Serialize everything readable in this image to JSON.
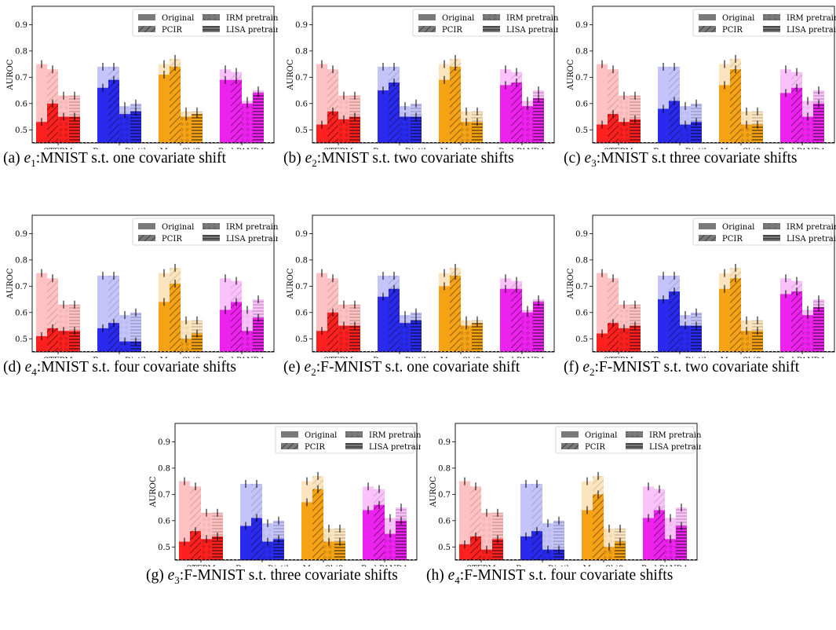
{
  "legend": {
    "items": [
      "Original",
      "PCIR",
      "IRM pretraining",
      "LISA pretraining"
    ]
  },
  "colors": {
    "STFPM": "#ff2020",
    "ReverseDistil": "#2a2aee",
    "MeanShift": "#f5a315",
    "Red PANDA": "#ee22ee"
  },
  "captions": [
    {
      "label": "(a)",
      "env_base": "e",
      "env_sub": "1",
      "rest": ":MNIST s.t. one covariate shift"
    },
    {
      "label": "(b)",
      "env_base": "e",
      "env_sub": "2",
      "rest": ":MNIST s.t. two covariate shifts"
    },
    {
      "label": "(c)",
      "env_base": "e",
      "env_sub": "3",
      "rest": ":MNIST s.t three covariate shifts"
    },
    {
      "label": "(d)",
      "env_base": "e",
      "env_sub": "4",
      "rest": ":MNIST s.t. four covariate shifts"
    },
    {
      "label": "(e)",
      "env_base": "e",
      "env_sub": "2",
      "rest": ":F-MNIST s.t. one covariate shift"
    },
    {
      "label": "(f)",
      "env_base": "e",
      "env_sub": "2",
      "rest": ":F-MNIST s.t. two covariate shift"
    },
    {
      "label": "(g)",
      "env_base": "e",
      "env_sub": "3",
      "rest": ":F-MNIST s.t. three covariate shifts"
    },
    {
      "label": "(h)",
      "env_base": "e",
      "env_sub": "4",
      "rest": ":F-MNIST s.t. four covariate shifts"
    }
  ],
  "chart_data": [
    {
      "type": "bar",
      "ylabel": "AUROC",
      "ylim": [
        0.45,
        0.97
      ],
      "yticks": [
        0.5,
        0.6,
        0.7,
        0.8,
        0.9
      ],
      "categories": [
        "STFPM",
        "ReverseDistil",
        "MeanShift",
        "Red PANDA"
      ],
      "legend_position": "top-right",
      "baseline_style": "dashed",
      "series": [
        {
          "name": "Original",
          "ref": [
            0.75,
            0.74,
            0.75,
            0.73
          ],
          "values": [
            0.53,
            0.66,
            0.71,
            0.69
          ]
        },
        {
          "name": "PCIR",
          "ref": [
            0.73,
            0.74,
            0.77,
            0.72
          ],
          "values": [
            0.6,
            0.69,
            0.74,
            0.69
          ]
        },
        {
          "name": "IRM pretraining",
          "ref": [
            0.63,
            0.59,
            0.57,
            0.61
          ],
          "values": [
            0.55,
            0.56,
            0.55,
            0.6
          ]
        },
        {
          "name": "LISA pretraining",
          "ref": [
            0.63,
            0.6,
            0.57,
            0.65
          ],
          "values": [
            0.55,
            0.57,
            0.56,
            0.64
          ]
        }
      ]
    },
    {
      "type": "bar",
      "ylabel": "AUROC",
      "ylim": [
        0.45,
        0.97
      ],
      "yticks": [
        0.5,
        0.6,
        0.7,
        0.8,
        0.9
      ],
      "categories": [
        "STFPM",
        "ReverseDistil",
        "MeanShift",
        "Red PANDA"
      ],
      "legend_position": "top-right",
      "baseline_style": "dashed",
      "series": [
        {
          "name": "Original",
          "ref": [
            0.75,
            0.74,
            0.75,
            0.73
          ],
          "values": [
            0.52,
            0.65,
            0.69,
            0.67
          ]
        },
        {
          "name": "PCIR",
          "ref": [
            0.73,
            0.74,
            0.77,
            0.72
          ],
          "values": [
            0.57,
            0.68,
            0.74,
            0.68
          ]
        },
        {
          "name": "IRM pretraining",
          "ref": [
            0.63,
            0.59,
            0.57,
            0.61
          ],
          "values": [
            0.54,
            0.55,
            0.53,
            0.59
          ]
        },
        {
          "name": "LISA pretraining",
          "ref": [
            0.63,
            0.6,
            0.57,
            0.65
          ],
          "values": [
            0.55,
            0.55,
            0.53,
            0.62
          ]
        }
      ]
    },
    {
      "type": "bar",
      "ylabel": "AUROC",
      "ylim": [
        0.45,
        0.97
      ],
      "yticks": [
        0.5,
        0.6,
        0.7,
        0.8,
        0.9
      ],
      "categories": [
        "STFPM",
        "ReverseDistil",
        "MeanShift",
        "Red PANDA"
      ],
      "legend_position": "top-right",
      "baseline_style": "dashed",
      "series": [
        {
          "name": "Original",
          "ref": [
            0.75,
            0.74,
            0.75,
            0.73
          ],
          "values": [
            0.52,
            0.58,
            0.67,
            0.64
          ]
        },
        {
          "name": "PCIR",
          "ref": [
            0.73,
            0.74,
            0.77,
            0.72
          ],
          "values": [
            0.56,
            0.61,
            0.73,
            0.66
          ]
        },
        {
          "name": "IRM pretraining",
          "ref": [
            0.63,
            0.59,
            0.57,
            0.61
          ],
          "values": [
            0.53,
            0.52,
            0.52,
            0.55
          ]
        },
        {
          "name": "LISA pretraining",
          "ref": [
            0.63,
            0.6,
            0.57,
            0.65
          ],
          "values": [
            0.54,
            0.53,
            0.52,
            0.6
          ]
        }
      ]
    },
    {
      "type": "bar",
      "ylabel": "AUROC",
      "ylim": [
        0.45,
        0.97
      ],
      "yticks": [
        0.5,
        0.6,
        0.7,
        0.8,
        0.9
      ],
      "categories": [
        "STFPM",
        "ReverseDistil",
        "MeanShift",
        "Red PANDA"
      ],
      "legend_position": "top-right",
      "baseline_style": "dashed",
      "series": [
        {
          "name": "Original",
          "ref": [
            0.75,
            0.74,
            0.75,
            0.73
          ],
          "values": [
            0.51,
            0.54,
            0.64,
            0.61
          ]
        },
        {
          "name": "PCIR",
          "ref": [
            0.73,
            0.74,
            0.77,
            0.72
          ],
          "values": [
            0.54,
            0.56,
            0.71,
            0.64
          ]
        },
        {
          "name": "IRM pretraining",
          "ref": [
            0.63,
            0.59,
            0.57,
            0.61
          ],
          "values": [
            0.53,
            0.49,
            0.5,
            0.53
          ]
        },
        {
          "name": "LISA pretraining",
          "ref": [
            0.63,
            0.6,
            0.57,
            0.65
          ],
          "values": [
            0.53,
            0.49,
            0.52,
            0.58
          ]
        }
      ]
    },
    {
      "type": "bar",
      "ylabel": "AUROC",
      "ylim": [
        0.45,
        0.97
      ],
      "yticks": [
        0.5,
        0.6,
        0.7,
        0.8,
        0.9
      ],
      "categories": [
        "STFPM",
        "ReverseDistil",
        "MeanShift",
        "Red PANDA"
      ],
      "legend_position": "none",
      "baseline_style": "dashed",
      "series": [
        {
          "name": "Original",
          "ref": [
            0.75,
            0.74,
            0.75,
            0.73
          ],
          "values": [
            0.53,
            0.66,
            0.7,
            0.69
          ]
        },
        {
          "name": "PCIR",
          "ref": [
            0.73,
            0.74,
            0.77,
            0.72
          ],
          "values": [
            0.6,
            0.69,
            0.74,
            0.69
          ]
        },
        {
          "name": "IRM pretraining",
          "ref": [
            0.63,
            0.59,
            0.57,
            0.61
          ],
          "values": [
            0.55,
            0.56,
            0.55,
            0.6
          ]
        },
        {
          "name": "LISA pretraining",
          "ref": [
            0.63,
            0.6,
            0.57,
            0.65
          ],
          "values": [
            0.55,
            0.57,
            0.56,
            0.64
          ]
        }
      ]
    },
    {
      "type": "bar",
      "ylabel": "AUROC",
      "ylim": [
        0.45,
        0.97
      ],
      "yticks": [
        0.5,
        0.6,
        0.7,
        0.8,
        0.9
      ],
      "categories": [
        "STFPM",
        "ReverseDistil",
        "MeanShift",
        "Red PANDA"
      ],
      "legend_position": "top-right",
      "baseline_style": "dashed",
      "series": [
        {
          "name": "Original",
          "ref": [
            0.75,
            0.74,
            0.75,
            0.73
          ],
          "values": [
            0.52,
            0.65,
            0.69,
            0.67
          ]
        },
        {
          "name": "PCIR",
          "ref": [
            0.73,
            0.74,
            0.77,
            0.72
          ],
          "values": [
            0.56,
            0.68,
            0.73,
            0.68
          ]
        },
        {
          "name": "IRM pretraining",
          "ref": [
            0.63,
            0.59,
            0.57,
            0.61
          ],
          "values": [
            0.54,
            0.55,
            0.53,
            0.59
          ]
        },
        {
          "name": "LISA pretraining",
          "ref": [
            0.63,
            0.6,
            0.57,
            0.65
          ],
          "values": [
            0.55,
            0.55,
            0.53,
            0.62
          ]
        }
      ]
    },
    {
      "type": "bar",
      "ylabel": "AUROC",
      "ylim": [
        0.45,
        0.97
      ],
      "yticks": [
        0.5,
        0.6,
        0.7,
        0.8,
        0.9
      ],
      "categories": [
        "STFPM",
        "ReverseDistil",
        "MeanShift",
        "Red PANDA"
      ],
      "legend_position": "top-right",
      "baseline_style": "dashed",
      "series": [
        {
          "name": "Original",
          "ref": [
            0.75,
            0.74,
            0.75,
            0.73
          ],
          "values": [
            0.52,
            0.58,
            0.67,
            0.64
          ]
        },
        {
          "name": "PCIR",
          "ref": [
            0.73,
            0.74,
            0.77,
            0.72
          ],
          "values": [
            0.56,
            0.61,
            0.72,
            0.66
          ]
        },
        {
          "name": "IRM pretraining",
          "ref": [
            0.63,
            0.59,
            0.57,
            0.61
          ],
          "values": [
            0.53,
            0.52,
            0.52,
            0.55
          ]
        },
        {
          "name": "LISA pretraining",
          "ref": [
            0.63,
            0.6,
            0.57,
            0.65
          ],
          "values": [
            0.54,
            0.53,
            0.52,
            0.6
          ]
        }
      ]
    },
    {
      "type": "bar",
      "ylabel": "AUROC",
      "ylim": [
        0.45,
        0.97
      ],
      "yticks": [
        0.5,
        0.6,
        0.7,
        0.8,
        0.9
      ],
      "categories": [
        "STFPM",
        "ReverseDistil",
        "MeanShift",
        "Red PANDA"
      ],
      "legend_position": "top-right",
      "baseline_style": "dashed",
      "series": [
        {
          "name": "Original",
          "ref": [
            0.75,
            0.74,
            0.75,
            0.73
          ],
          "values": [
            0.51,
            0.54,
            0.64,
            0.61
          ]
        },
        {
          "name": "PCIR",
          "ref": [
            0.73,
            0.74,
            0.77,
            0.72
          ],
          "values": [
            0.54,
            0.56,
            0.7,
            0.64
          ]
        },
        {
          "name": "IRM pretraining",
          "ref": [
            0.63,
            0.59,
            0.57,
            0.61
          ],
          "values": [
            0.49,
            0.49,
            0.5,
            0.53
          ]
        },
        {
          "name": "LISA pretraining",
          "ref": [
            0.63,
            0.6,
            0.57,
            0.65
          ],
          "values": [
            0.53,
            0.49,
            0.52,
            0.58
          ]
        }
      ]
    }
  ]
}
